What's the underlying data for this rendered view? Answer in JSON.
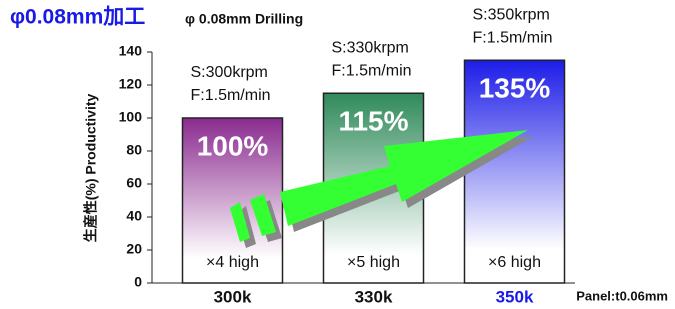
{
  "chart_data": {
    "type": "bar",
    "title": "φ0.08mm加工",
    "subtitle": "φ 0.08mm Drilling",
    "y_label": "生産性(%) Productivity",
    "note": "Panel:t0.06mm",
    "categories": [
      "300k",
      "330k",
      "350k"
    ],
    "category_colors": [
      "#111111",
      "#111111",
      "#1a1ae6"
    ],
    "values": [
      100,
      115,
      135
    ],
    "value_labels": [
      "100%",
      "115%",
      "135%"
    ],
    "colors": [
      "#8a2a8f",
      "#2f8a5a",
      "#1c1ce8"
    ],
    "speed_labels": [
      "S:300krpm",
      "S:330krpm",
      "S:350krpm"
    ],
    "feed_labels": [
      "F:1.5m/min",
      "F:1.5m/min",
      "F:1.5m/min"
    ],
    "inner_labels": [
      "×4 high",
      "×5 high",
      "×6 high"
    ],
    "ylim": [
      0,
      140
    ],
    "yticks": [
      0,
      20,
      40,
      60,
      80,
      100,
      120,
      140
    ]
  }
}
